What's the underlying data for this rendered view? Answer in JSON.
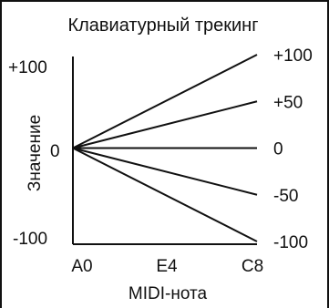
{
  "chart_data": {
    "type": "line",
    "title": "Клавиатурный трекинг",
    "xlabel": "MIDI-нота",
    "ylabel": "Значение",
    "x_ticks": [
      "A0",
      "E4",
      "C8"
    ],
    "y_ticks": [
      "+100",
      "0",
      "-100"
    ],
    "ylim": [
      -100,
      100
    ],
    "series": [
      {
        "name": "+100",
        "x": [
          "A0",
          "C8"
        ],
        "values": [
          0,
          100
        ]
      },
      {
        "name": "+50",
        "x": [
          "A0",
          "C8"
        ],
        "values": [
          0,
          50
        ]
      },
      {
        "name": "0",
        "x": [
          "A0",
          "C8"
        ],
        "values": [
          0,
          0
        ]
      },
      {
        "name": "-50",
        "x": [
          "A0",
          "C8"
        ],
        "values": [
          0,
          -50
        ]
      },
      {
        "name": "-100",
        "x": [
          "A0",
          "C8"
        ],
        "values": [
          0,
          -100
        ]
      }
    ],
    "grid": false,
    "legend": "right"
  }
}
